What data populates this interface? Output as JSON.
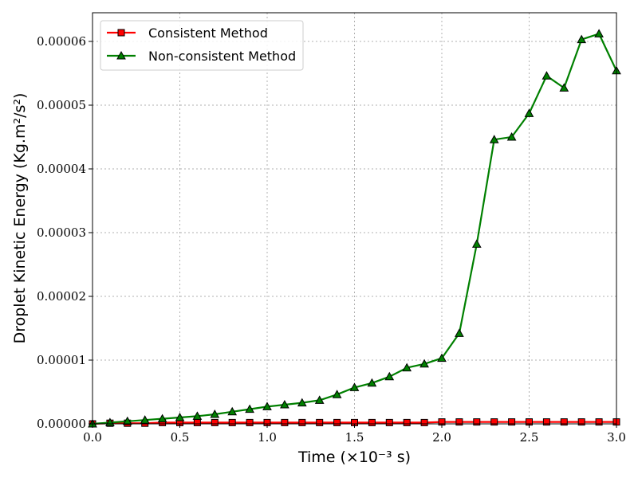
{
  "chart_data": {
    "type": "line",
    "title": "",
    "xlabel": "Time (×10⁻³ s)",
    "ylabel": "Droplet Kinetic Energy (Kg.m²/s²)",
    "xlim": [
      0.0,
      3.0
    ],
    "ylim": [
      0.0,
      6.45e-05
    ],
    "grid": true,
    "legend_position": "top-left",
    "x_ticks": [
      0.0,
      0.5,
      1.0,
      1.5,
      2.0,
      2.5,
      3.0
    ],
    "x_tick_labels": [
      "0.0",
      "0.5",
      "1.0",
      "1.5",
      "2.0",
      "2.5",
      "3.0"
    ],
    "y_ticks": [
      0,
      1e-05,
      2e-05,
      3e-05,
      4e-05,
      5e-05,
      6e-05
    ],
    "y_tick_labels": [
      "0.00000",
      "0.00001",
      "0.00002",
      "0.00003",
      "0.00004",
      "0.00005",
      "0.00006"
    ],
    "x": [
      0.0,
      0.1,
      0.2,
      0.3,
      0.4,
      0.5,
      0.6,
      0.7,
      0.8,
      0.9,
      1.0,
      1.1,
      1.2,
      1.3,
      1.4,
      1.5,
      1.6,
      1.7,
      1.8,
      1.9,
      2.0,
      2.1,
      2.2,
      2.3,
      2.4,
      2.5,
      2.6,
      2.7,
      2.8,
      2.9,
      3.0
    ],
    "series": [
      {
        "name": "Consistent Method",
        "color": "#ff0000",
        "marker": "square",
        "values": [
          0.0,
          1e-07,
          1e-07,
          1e-07,
          2e-07,
          2e-07,
          2e-07,
          2e-07,
          2e-07,
          2e-07,
          2e-07,
          2e-07,
          2e-07,
          2e-07,
          2e-07,
          2e-07,
          2e-07,
          2e-07,
          2e-07,
          2e-07,
          3e-07,
          3e-07,
          3e-07,
          3e-07,
          3e-07,
          3e-07,
          3e-07,
          3e-07,
          3e-07,
          3e-07,
          3e-07
        ]
      },
      {
        "name": "Non-consistent Method",
        "color": "#008000",
        "marker": "triangle",
        "values": [
          0.0,
          2e-07,
          4e-07,
          6e-07,
          8e-07,
          1e-06,
          1.2e-06,
          1.5e-06,
          1.9e-06,
          2.3e-06,
          2.7e-06,
          3e-06,
          3.3e-06,
          3.7e-06,
          4.6e-06,
          5.7e-06,
          6.4e-06,
          7.4e-06,
          8.8e-06,
          9.4e-06,
          1.03e-05,
          1.42e-05,
          2.82e-05,
          4.46e-05,
          4.5e-05,
          4.87e-05,
          5.46e-05,
          5.27e-05,
          6.03e-05,
          6.12e-05,
          5.54e-05
        ]
      }
    ]
  }
}
